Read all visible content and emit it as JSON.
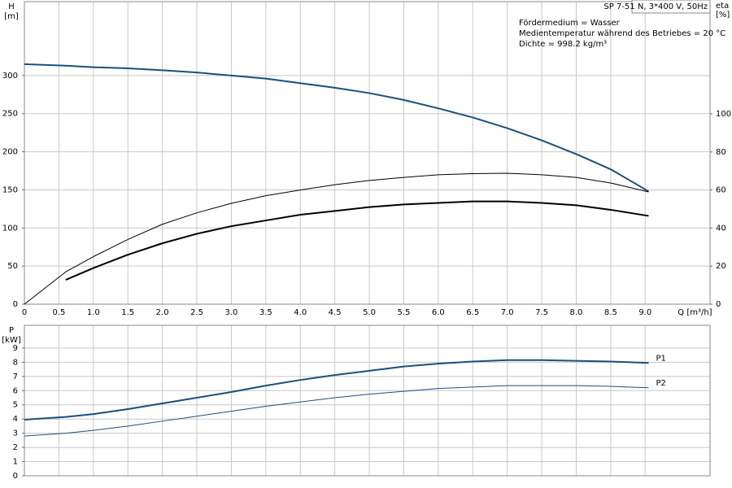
{
  "chart_data": [
    {
      "type": "line",
      "y_label": "H",
      "y_unit": "[m]",
      "y2_label": "eta",
      "y2_unit": "[%]",
      "x_label": "Q [m³/h]",
      "annotations": [
        "SP 7-51 N, 3*400 V, 50Hz",
        "Fördermedium = Wasser",
        "Medientemperatur während des Betriebes = 20 °C",
        "Dichte = 998.2 kg/m³"
      ],
      "x": [
        0,
        0.6,
        1,
        1.5,
        2,
        2.5,
        3,
        3.5,
        4,
        4.5,
        5,
        5.5,
        6,
        6.5,
        7,
        7.5,
        8,
        8.5,
        9.05
      ],
      "xlim": [
        0,
        9.94
      ],
      "xticks": [
        0,
        0.5,
        {
          "value": 1,
          "label": "1.0"
        },
        1.5,
        {
          "value": 2,
          "label": "2.0"
        },
        2.5,
        {
          "value": 3,
          "label": "3.0"
        },
        3.5,
        {
          "value": 4,
          "label": "4.0"
        },
        4.5,
        {
          "value": 5,
          "label": "5.0"
        },
        5.5,
        {
          "value": 6,
          "label": "6.0"
        },
        6.5,
        {
          "value": 7,
          "label": "7.0"
        },
        7.5,
        {
          "value": 8,
          "label": "8.0"
        },
        8.5,
        {
          "value": 9,
          "label": "9.0"
        }
      ],
      "ylim": [
        0,
        397
      ],
      "yticks": [
        0,
        50,
        100,
        150,
        200,
        250,
        300
      ],
      "y2lim": [
        0,
        159
      ],
      "y2ticks": [
        0,
        20,
        40,
        60,
        80,
        100
      ],
      "grid": true,
      "series": [
        {
          "color": "#1a4f80",
          "values": [
            315,
            313,
            311,
            309.5,
            307,
            304,
            300,
            296,
            290,
            284,
            277,
            268,
            257,
            245,
            231,
            215,
            197,
            177,
            148
          ]
        },
        {
          "color": "#000000",
          "axis": "y2",
          "values": [
            0,
            17,
            25,
            34,
            42,
            48,
            53,
            57,
            60,
            62.8,
            65,
            66.6,
            68,
            68.6,
            68.8,
            68,
            66.6,
            63.7,
            59
          ]
        },
        {
          "color": "#000000",
          "axis": "y2",
          "values": [
            null,
            12.8,
            19,
            26,
            32,
            37,
            41,
            44,
            47,
            49,
            51,
            52.4,
            53.2,
            54,
            54,
            53.2,
            52,
            49.6,
            46.4
          ]
        }
      ]
    },
    {
      "type": "line",
      "y_label": "P",
      "y_unit": "[kW]",
      "x": [
        0,
        0.6,
        1,
        1.5,
        2,
        2.5,
        3,
        3.5,
        4,
        4.5,
        5,
        5.5,
        6,
        6.5,
        7,
        7.5,
        8,
        8.5,
        9.05
      ],
      "xlim": [
        0,
        9.94
      ],
      "ylim": [
        0,
        10.6
      ],
      "yticks": [
        0,
        1,
        2,
        3,
        4,
        5,
        6,
        7,
        8,
        9
      ],
      "grid": true,
      "series": [
        {
          "name": "P1",
          "color": "#1a4f80",
          "values": [
            3.95,
            4.15,
            4.35,
            4.7,
            5.1,
            5.5,
            5.9,
            6.35,
            6.75,
            7.1,
            7.4,
            7.7,
            7.9,
            8.05,
            8.15,
            8.15,
            8.1,
            8.05,
            7.95
          ]
        },
        {
          "name": "P2",
          "color": "#1a4f80",
          "values": [
            2.8,
            3.0,
            3.2,
            3.5,
            3.85,
            4.2,
            4.55,
            4.9,
            5.2,
            5.5,
            5.75,
            5.95,
            6.15,
            6.25,
            6.35,
            6.35,
            6.35,
            6.3,
            6.2
          ]
        }
      ]
    }
  ]
}
